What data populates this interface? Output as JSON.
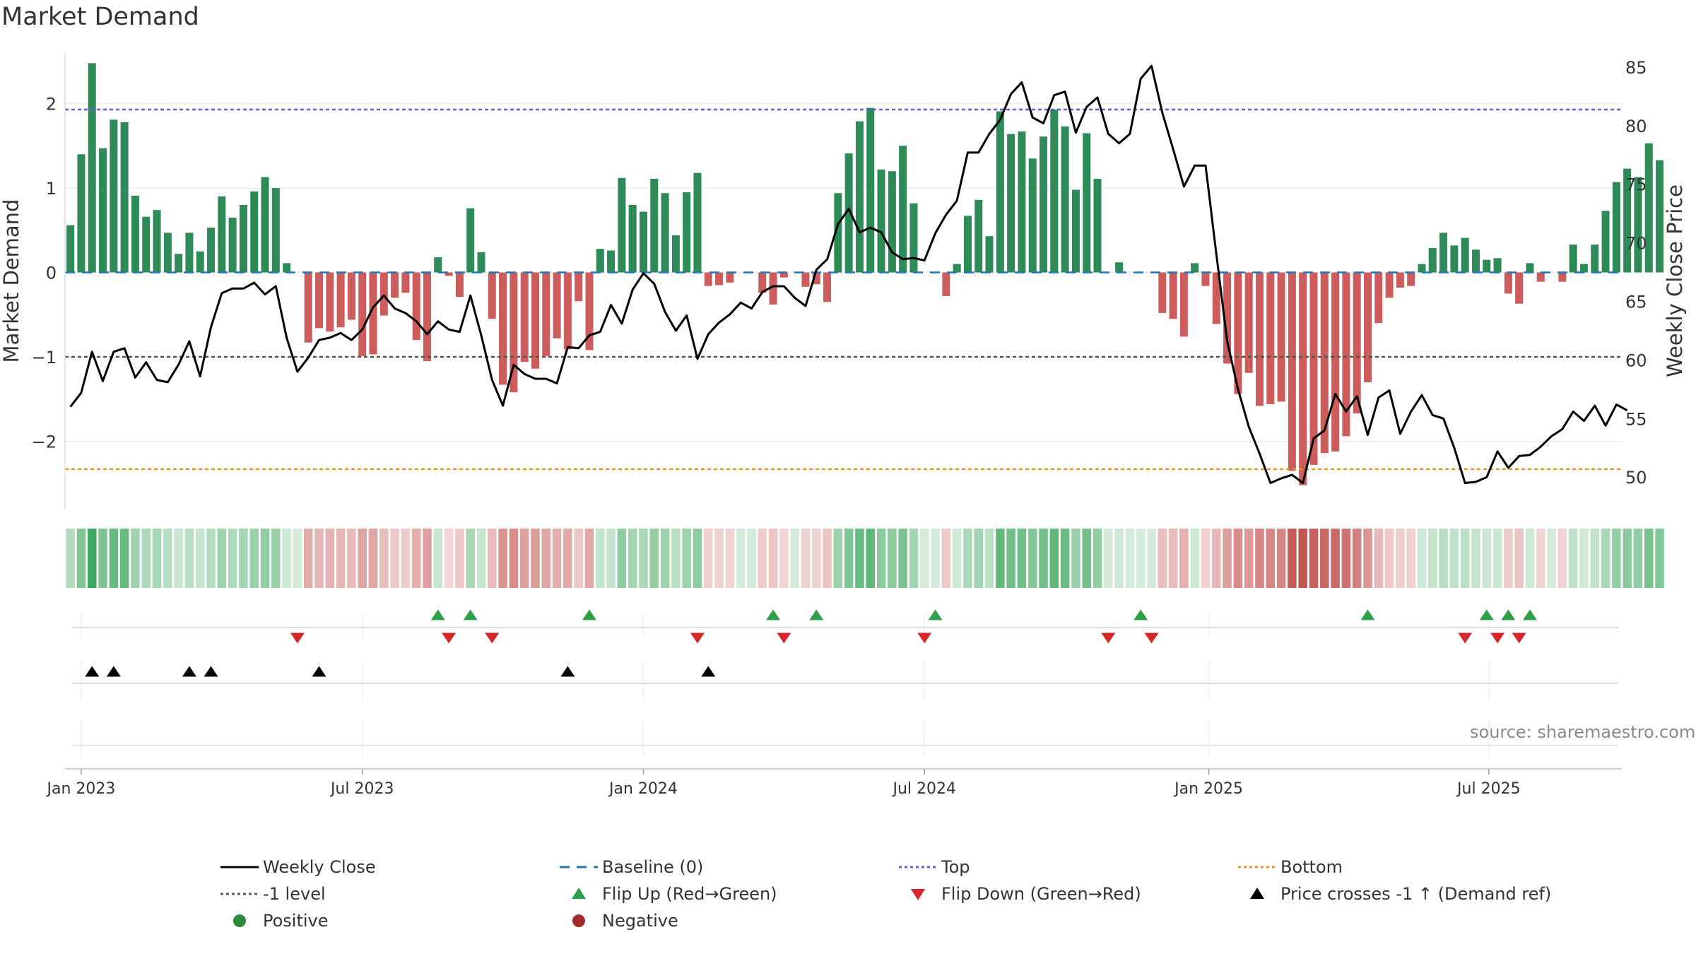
{
  "title": "Market Demand",
  "source": "source: sharemaestro.com",
  "colors": {
    "positive": "#2e8b57",
    "negative": "#cd5c5c",
    "top_line": "#6a5acd",
    "bottom_line": "#e69520",
    "baseline": "#1f77b4",
    "level_line": "#555555",
    "flip_up": "#2ca048",
    "flip_down": "#d62728",
    "price": "#000000"
  },
  "legend": {
    "weekly_close": "Weekly Close",
    "baseline": "Baseline (0)",
    "top": "Top",
    "bottom": "Bottom",
    "level": "-1 level",
    "flip_up": "Flip Up (Red→Green)",
    "flip_down": "Flip Down (Green→Red)",
    "price_cross": "Price crosses -1 ↑ (Demand ref)",
    "positive": "Positive",
    "negative": "Negative"
  },
  "chart_data": {
    "type": "bar",
    "title": "Market Demand",
    "ylabel": "Market Demand",
    "y2label": "Weekly Close Price",
    "ylim": [
      -2.8,
      2.6
    ],
    "y2lim": [
      47.3,
      86.2
    ],
    "yticks": [
      2,
      1,
      0,
      -1,
      -2
    ],
    "y2ticks": [
      85,
      80,
      75,
      70,
      65,
      60,
      55,
      50
    ],
    "xlim": [
      0,
      144
    ],
    "xtick_positions": [
      1.5,
      27.5,
      53.5,
      79.5,
      105.8,
      131.7
    ],
    "xtick_labels": [
      "Jan 2023",
      "Jul 2023",
      "Jan 2024",
      "Jul 2024",
      "Jan 2025",
      "Jul 2025"
    ],
    "top_level": 1.93,
    "bottom_level": -2.33,
    "ref_level": -1,
    "baseline": 0,
    "demand": [
      0.56,
      1.4,
      2.48,
      1.47,
      1.81,
      1.78,
      0.91,
      0.66,
      0.74,
      0.47,
      0.22,
      0.47,
      0.25,
      0.53,
      0.9,
      0.65,
      0.8,
      0.96,
      1.13,
      1.0,
      0.11,
      0.0,
      -0.83,
      -0.66,
      -0.7,
      -0.65,
      -0.56,
      -0.99,
      -0.97,
      -0.51,
      -0.3,
      -0.24,
      -0.8,
      -1.05,
      0.18,
      -0.04,
      -0.29,
      0.76,
      0.24,
      -0.55,
      -1.33,
      -1.42,
      -1.06,
      -1.14,
      -0.99,
      -0.78,
      -0.91,
      -0.34,
      -0.92,
      0.28,
      0.26,
      1.12,
      0.8,
      0.72,
      1.11,
      0.94,
      0.44,
      0.95,
      1.18,
      -0.16,
      -0.15,
      -0.12,
      0.0,
      0.0,
      -0.24,
      -0.38,
      -0.06,
      0.0,
      -0.17,
      -0.14,
      -0.35,
      0.94,
      1.41,
      1.79,
      1.95,
      1.22,
      1.2,
      1.5,
      0.82,
      0.0,
      0.0,
      -0.28,
      0.1,
      0.67,
      0.86,
      0.43,
      1.91,
      1.64,
      1.67,
      1.35,
      1.61,
      1.93,
      1.73,
      0.98,
      1.65,
      1.11,
      0.0,
      0.12,
      0.0,
      0.0,
      0.0,
      -0.48,
      -0.55,
      -0.76,
      0.11,
      -0.16,
      -0.61,
      -1.08,
      -1.44,
      -1.19,
      -1.58,
      -1.56,
      -1.53,
      -2.35,
      -2.52,
      -2.28,
      -2.14,
      -2.12,
      -1.94,
      -1.67,
      -1.3,
      -0.6,
      -0.3,
      -0.18,
      -0.16,
      0.1,
      0.29,
      0.47,
      0.32,
      0.41,
      0.27,
      0.15,
      0.17,
      -0.25,
      -0.37,
      0.11,
      -0.11,
      0.0,
      -0.11,
      0.33,
      0.1,
      0.33,
      0.73,
      1.07,
      1.23,
      1.13,
      1.53,
      1.33
    ],
    "price": [
      56,
      57.2,
      60.7,
      58.2,
      60.7,
      61,
      58.5,
      59.8,
      58.3,
      58.1,
      59.6,
      61.6,
      58.6,
      62.8,
      65.7,
      66.1,
      66.1,
      66.6,
      65.6,
      66.3,
      61.9,
      59,
      60.2,
      61.7,
      61.9,
      62.3,
      61.7,
      62.6,
      64.5,
      65.5,
      64.4,
      64,
      63.3,
      62.2,
      63.3,
      62.6,
      62.4,
      65.5,
      62.1,
      58.3,
      56.1,
      59.6,
      58.8,
      58.4,
      58.4,
      58,
      61.1,
      61,
      62.1,
      62.4,
      64.7,
      63.1,
      66,
      67.4,
      66.5,
      64.1,
      62.5,
      63.8,
      60.1,
      62.2,
      63.2,
      63.9,
      64.9,
      64.4,
      65.8,
      66.3,
      66.3,
      65.3,
      64.6,
      67.7,
      68.6,
      71.6,
      72.9,
      70.9,
      71.3,
      70.9,
      69.2,
      68.6,
      68.7,
      68.5,
      70.8,
      72.4,
      73.6,
      77.7,
      77.7,
      79.3,
      80.5,
      82.7,
      83.7,
      80.7,
      80.2,
      82.6,
      82.9,
      79.4,
      81.6,
      82.4,
      79.3,
      78.5,
      79.3,
      84,
      85.1,
      81.1,
      78,
      74.8,
      76.6,
      76.6,
      69,
      61.6,
      57.5,
      54.3,
      52,
      49.5,
      49.9,
      50.2,
      49.5,
      53.3,
      54,
      57.1,
      55.6,
      56.9,
      53.6,
      56.8,
      57.4,
      53.7,
      55.6,
      57,
      55.3,
      55,
      52.5,
      49.5,
      49.6,
      50,
      52.2,
      50.8,
      51.8,
      51.9,
      52.6,
      53.5,
      54.1,
      55.6,
      54.8,
      56.1,
      54.4,
      56.2,
      55.7
    ],
    "flip_up_x": [
      34.5,
      37.5,
      48.5,
      65.5,
      69.5,
      80.5,
      99.5,
      120.5,
      131.5,
      133.5,
      135.5
    ],
    "flip_down_x": [
      21.5,
      35.5,
      39.5,
      58.5,
      66.5,
      79.5,
      96.5,
      100.5,
      129.5,
      132.5,
      134.5
    ],
    "price_cross_x": [
      2.5,
      4.5,
      11.5,
      13.5,
      23.5,
      46.5,
      59.5
    ]
  }
}
